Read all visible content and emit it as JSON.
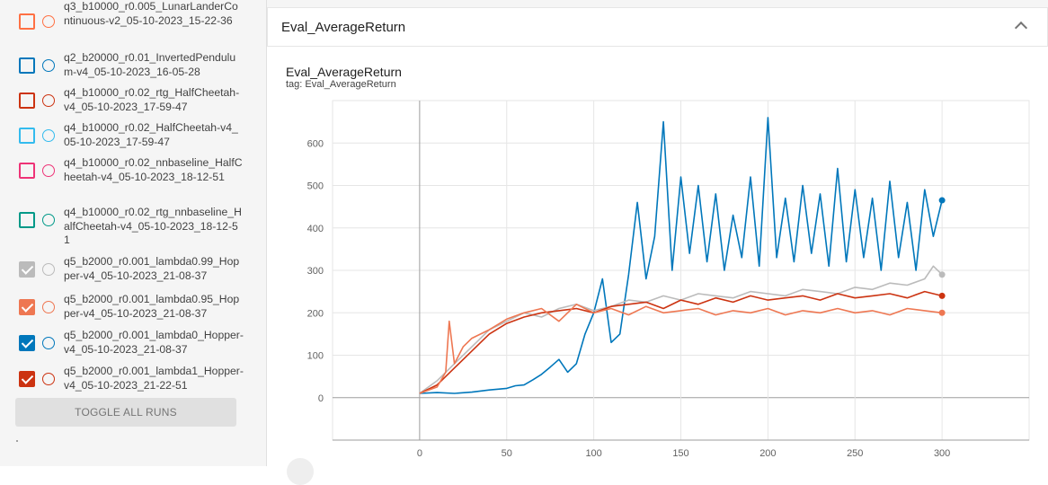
{
  "sidebar": {
    "runs": [
      {
        "label": "q3_b10000_r0.005_LunarLanderContinuous-v2_05-10-2023_15-22-36",
        "color": "#ff7043",
        "checked": false
      },
      {
        "label": "q2_b20000_r0.01_InvertedPendulum-v4_05-10-2023_16-05-28",
        "color": "#0077bb",
        "checked": false
      },
      {
        "label": "q4_b10000_r0.02_rtg_HalfCheetah-v4_05-10-2023_17-59-47",
        "color": "#cc3311",
        "checked": false
      },
      {
        "label": "q4_b10000_r0.02_HalfCheetah-v4_05-10-2023_17-59-47",
        "color": "#33bbee",
        "checked": false
      },
      {
        "label": "q4_b10000_r0.02_nnbaseline_HalfCheetah-v4_05-10-2023_18-12-51",
        "color": "#ee3377",
        "checked": false
      },
      {
        "label": "q4_b10000_r0.02_rtg_nnbaseline_HalfCheetah-v4_05-10-2023_18-12-51",
        "color": "#009988",
        "checked": false
      },
      {
        "label": "q5_b2000_r0.001_lambda0.99_Hopper-v4_05-10-2023_21-08-37",
        "color": "#bbbbbb",
        "checked": true
      },
      {
        "label": "q5_b2000_r0.001_lambda0.95_Hopper-v4_05-10-2023_21-08-37",
        "color": "#ee7752",
        "checked": true
      },
      {
        "label": "q5_b2000_r0.001_lambda0_Hopper-v4_05-10-2023_21-08-37",
        "color": "#0077bb",
        "checked": true
      },
      {
        "label": "q5_b2000_r0.001_lambda1_Hopper-v4_05-10-2023_21-22-51",
        "color": "#cc3311",
        "checked": true
      }
    ],
    "toggle_label": "TOGGLE ALL RUNS"
  },
  "card": {
    "header_title": "Eval_AverageReturn",
    "chart_title": "Eval_AverageReturn",
    "tag": "tag: Eval_AverageReturn"
  },
  "chart_data": {
    "type": "line",
    "title": "Eval_AverageReturn",
    "xlabel": "",
    "ylabel": "",
    "xlim": [
      -50,
      350
    ],
    "ylim": [
      -100,
      700
    ],
    "xticks": [
      0,
      50,
      100,
      150,
      200,
      250,
      300
    ],
    "yticks": [
      0,
      100,
      200,
      300,
      400,
      500,
      600
    ],
    "grid": true,
    "series": [
      {
        "name": "q5_b2000_r0.001_lambda0_Hopper-v4_05-10-2023_21-08-37",
        "color": "#0077bb",
        "x": [
          0,
          10,
          20,
          30,
          40,
          50,
          55,
          60,
          65,
          70,
          75,
          80,
          85,
          90,
          95,
          100,
          105,
          110,
          115,
          120,
          125,
          130,
          135,
          140,
          145,
          150,
          155,
          160,
          165,
          170,
          175,
          180,
          185,
          190,
          195,
          200,
          205,
          210,
          215,
          220,
          225,
          230,
          235,
          240,
          245,
          250,
          255,
          260,
          265,
          270,
          275,
          280,
          285,
          290,
          295,
          300
        ],
        "values": [
          10,
          12,
          10,
          13,
          18,
          22,
          28,
          30,
          42,
          55,
          72,
          90,
          60,
          80,
          150,
          200,
          280,
          130,
          150,
          290,
          460,
          280,
          380,
          650,
          300,
          520,
          340,
          500,
          320,
          480,
          300,
          430,
          330,
          520,
          310,
          660,
          330,
          470,
          320,
          500,
          340,
          480,
          310,
          540,
          320,
          490,
          330,
          470,
          300,
          510,
          330,
          460,
          300,
          490,
          380,
          465
        ]
      },
      {
        "name": "q5_b2000_r0.001_lambda0.99_Hopper-v4_05-10-2023_21-08-37",
        "color": "#bbbbbb",
        "x": [
          0,
          10,
          20,
          30,
          40,
          50,
          60,
          70,
          80,
          90,
          100,
          110,
          120,
          130,
          140,
          150,
          160,
          170,
          180,
          190,
          200,
          210,
          220,
          230,
          240,
          250,
          260,
          270,
          280,
          290,
          295,
          300
        ],
        "values": [
          10,
          40,
          80,
          120,
          160,
          180,
          200,
          190,
          210,
          220,
          205,
          215,
          230,
          225,
          240,
          230,
          245,
          240,
          235,
          250,
          245,
          240,
          255,
          250,
          245,
          260,
          255,
          270,
          265,
          280,
          310,
          290
        ]
      },
      {
        "name": "q5_b2000_r0.001_lambda1_Hopper-v4_05-10-2023_21-22-51",
        "color": "#cc3311",
        "x": [
          0,
          10,
          20,
          30,
          40,
          50,
          60,
          70,
          80,
          90,
          100,
          110,
          120,
          130,
          140,
          150,
          160,
          170,
          180,
          190,
          200,
          210,
          220,
          230,
          240,
          250,
          260,
          270,
          280,
          290,
          300
        ],
        "values": [
          10,
          30,
          70,
          110,
          150,
          175,
          190,
          200,
          205,
          210,
          200,
          215,
          220,
          225,
          210,
          230,
          220,
          235,
          225,
          240,
          230,
          235,
          240,
          230,
          245,
          235,
          240,
          245,
          235,
          250,
          240
        ]
      },
      {
        "name": "q5_b2000_r0.001_lambda0.95_Hopper-v4_05-10-2023_21-08-37",
        "color": "#ee7752",
        "x": [
          0,
          10,
          15,
          17,
          20,
          25,
          30,
          40,
          50,
          60,
          70,
          80,
          90,
          100,
          110,
          120,
          130,
          140,
          150,
          160,
          170,
          180,
          190,
          200,
          210,
          220,
          230,
          240,
          250,
          260,
          270,
          280,
          290,
          300
        ],
        "values": [
          10,
          25,
          60,
          180,
          80,
          120,
          140,
          160,
          185,
          200,
          210,
          180,
          220,
          200,
          210,
          195,
          215,
          200,
          205,
          210,
          195,
          205,
          200,
          210,
          195,
          205,
          200,
          210,
          200,
          205,
          195,
          210,
          205,
          200
        ]
      }
    ]
  }
}
